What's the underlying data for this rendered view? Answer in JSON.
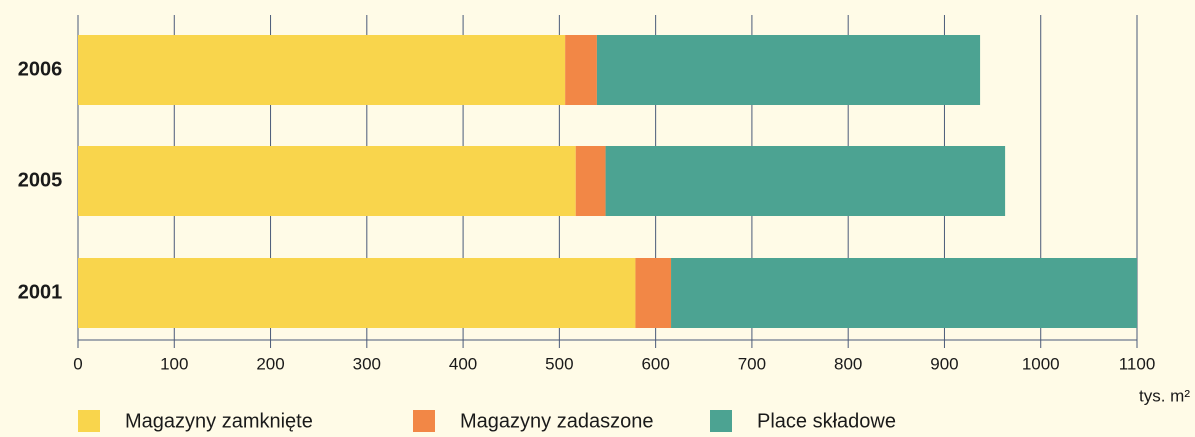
{
  "chart_data": {
    "type": "stacked-bar-horizontal",
    "categories": [
      "2006",
      "2005",
      "2001"
    ],
    "series": [
      {
        "name": "Magazyny zamknięte",
        "color": "#f9d54c",
        "values": [
          506,
          517,
          579
        ]
      },
      {
        "name": "Magazyny zadaszone",
        "color": "#f28746",
        "values": [
          33,
          31,
          37
        ]
      },
      {
        "name": "Place składowe",
        "color": "#4ca392",
        "values": [
          398,
          415,
          484
        ]
      }
    ],
    "xlim": [
      0,
      1100
    ],
    "xticks": [
      0,
      100,
      200,
      300,
      400,
      500,
      600,
      700,
      800,
      900,
      1000,
      1100
    ],
    "x_label": "tys. m²",
    "grid": true
  }
}
